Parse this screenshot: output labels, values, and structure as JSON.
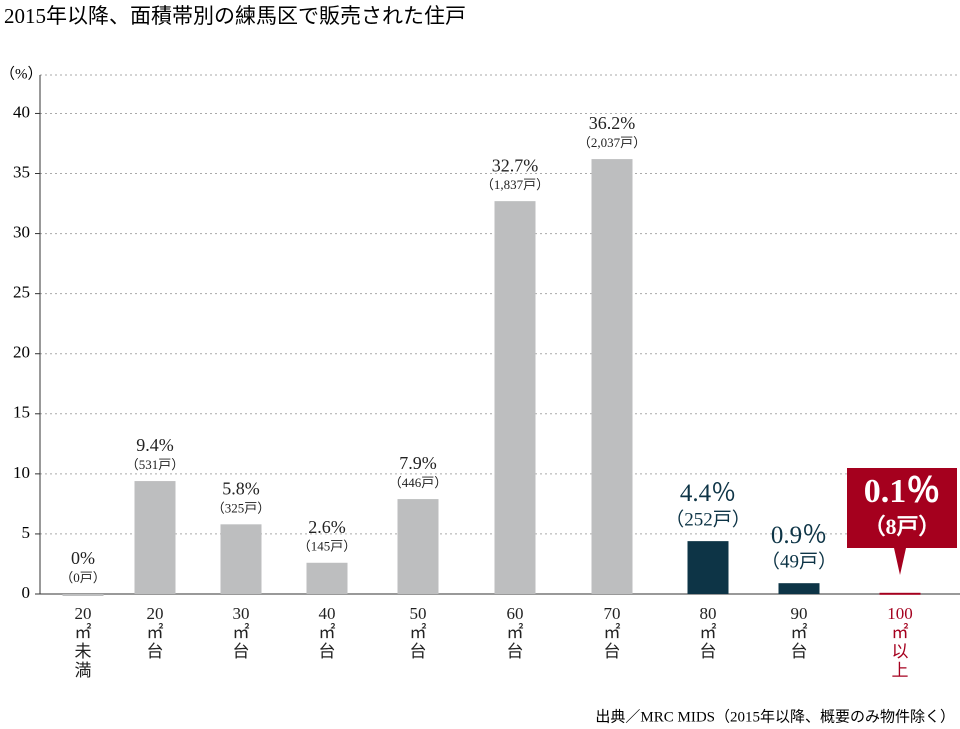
{
  "chart_data": {
    "type": "bar",
    "title": "2015年以降、面積帯別の練馬区で販売された住戸",
    "y_label": "（%）",
    "categories": [
      "20\n㎡\n未\n満",
      "20\n㎡\n台",
      "30\n㎡\n台",
      "40\n㎡\n台",
      "50\n㎡\n台",
      "60\n㎡\n台",
      "70\n㎡\n台",
      "80\n㎡\n台",
      "90\n㎡\n台",
      "100\n㎡\n以\n上"
    ],
    "values": [
      0,
      9.4,
      5.8,
      2.6,
      7.9,
      32.7,
      36.2,
      4.4,
      0.9,
      0.1
    ],
    "value_labels": [
      "0%",
      "9.4%",
      "5.8%",
      "2.6%",
      "7.9%",
      "32.7%",
      "36.2%",
      "4.4％",
      "0.9％",
      "0.1％"
    ],
    "unit_labels": [
      "（0戸）",
      "（531戸）",
      "（325戸）",
      "（145戸）",
      "（446戸）",
      "（1,837戸）",
      "（2,037戸）",
      "（252戸）",
      "（49戸）",
      "（8戸）"
    ],
    "colors": [
      "#bdbebf",
      "#bdbebf",
      "#bdbebf",
      "#bdbebf",
      "#bdbebf",
      "#bdbebf",
      "#bdbebf",
      "#0d3446",
      "#0d3446",
      "#a5001e"
    ],
    "ylim": [
      0,
      43.2
    ],
    "yticks": [
      0,
      5,
      10,
      15,
      20,
      25,
      30,
      35,
      40
    ],
    "grid": true,
    "source": "出典／MRC MIDS（2015年以降、概要のみ物件除く）"
  }
}
